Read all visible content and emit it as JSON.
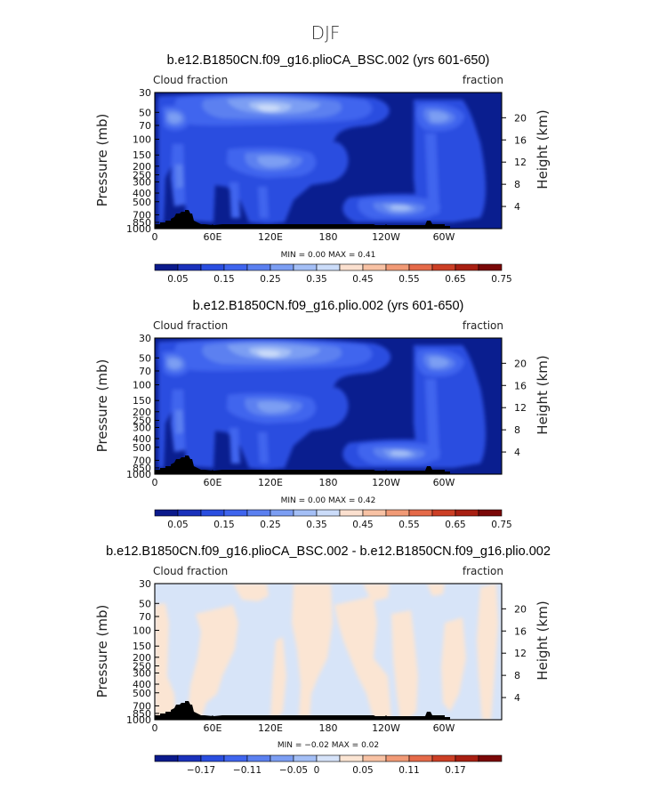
{
  "page_title": "DJF",
  "colors": {
    "cbar_abs": [
      "#0b1a8c",
      "#1a31bb",
      "#2a4ee0",
      "#3f65ee",
      "#5b80f0",
      "#7c9ef3",
      "#a4bff6",
      "#cbdcf9",
      "#fbe0cf",
      "#f8c2a4",
      "#f19a76",
      "#e56a49",
      "#cc3f25",
      "#a81f12",
      "#7a0808"
    ],
    "cbar_diff": [
      "#0b1a8c",
      "#1a31bb",
      "#2a4ee0",
      "#3f65ee",
      "#5b80f0",
      "#7c9ef3",
      "#a4bff6",
      "#d6e3f9",
      "#fbe5d3",
      "#f8c2a4",
      "#f19a76",
      "#e56a49",
      "#cc3f25",
      "#a81f12",
      "#7a0808"
    ],
    "background_abs": "#0a1e8f",
    "background_diff": "#d7e4f8",
    "positive_diff": "#fbe5d3",
    "topography": "#000000"
  },
  "panels": [
    {
      "title": "b.e12.B1850CN.f09_g16.plioCA_BSC.002 (yrs 601-650)",
      "left_label": "Cloud fraction",
      "right_label": "fraction",
      "minmax": "MIN =    0.00   MAX =    0.41",
      "colorbar_labels": [
        "0.05",
        "0.15",
        "0.25",
        "0.35",
        "0.45",
        "0.55",
        "0.65",
        "0.75"
      ]
    },
    {
      "title": "b.e12.B1850CN.f09_g16.plio.002 (yrs 601-650)",
      "left_label": "Cloud fraction",
      "right_label": "fraction",
      "minmax": "MIN =    0.00   MAX =    0.42",
      "colorbar_labels": [
        "0.05",
        "0.15",
        "0.25",
        "0.35",
        "0.45",
        "0.55",
        "0.65",
        "0.75"
      ]
    },
    {
      "title": "b.e12.B1850CN.f09_g16.plioCA_BSC.002 - b.e12.B1850CN.f09_g16.plio.002",
      "left_label": "Cloud fraction",
      "right_label": "fraction",
      "minmax": "MIN =   −0.02   MAX =    0.02",
      "colorbar_labels": [
        "−0.17",
        "−0.11",
        "−0.05",
        "0",
        "0.05",
        "0.11",
        "0.17"
      ]
    }
  ],
  "axes": {
    "ylabel_left": "Pressure (mb)",
    "ylabel_right": "Height (km)",
    "pressure_ticks": [
      "30",
      "50",
      "70",
      "100",
      "150",
      "200",
      "250",
      "300",
      "400",
      "500",
      "700",
      "850",
      "1000"
    ],
    "height_ticks": [
      "20",
      "16",
      "12",
      "8",
      "4"
    ],
    "x_ticks": [
      "0",
      "60E",
      "120E",
      "180",
      "120W",
      "60W"
    ]
  },
  "chart_data": [
    {
      "type": "heatmap",
      "title": "b.e12.B1850CN.f09_g16.plioCA_BSC.002 (yrs 601-650)",
      "variable": "Cloud fraction",
      "units": "fraction",
      "xlabel": "",
      "ylabel": "Pressure (mb)",
      "ylabel_right": "Height (km)",
      "x_ticks": [
        "0",
        "60E",
        "120E",
        "180",
        "120W",
        "60W"
      ],
      "y_ticks": [
        30,
        50,
        70,
        100,
        150,
        200,
        250,
        300,
        400,
        500,
        700,
        850,
        1000
      ],
      "ylim": [
        1000,
        30
      ],
      "min": 0.0,
      "max": 0.41,
      "contour_levels": [
        0.05,
        0.1,
        0.15,
        0.2,
        0.25,
        0.3,
        0.35,
        0.4,
        0.45,
        0.5,
        0.55,
        0.6,
        0.65,
        0.7,
        0.75
      ],
      "features": [
        {
          "lon": 125,
          "p": 180,
          "value": 0.4
        },
        {
          "lon": 20,
          "p": 200,
          "value": 0.35
        },
        {
          "lon": 295,
          "p": 190,
          "value": 0.3
        },
        {
          "lon": 125,
          "p": 480,
          "value": 0.3
        },
        {
          "lon": 280,
          "p": 820,
          "value": 0.35
        },
        {
          "lon": 30,
          "p": 550,
          "value": 0.25
        },
        {
          "lon": 220,
          "p": 550,
          "value": 0.05
        }
      ]
    },
    {
      "type": "heatmap",
      "title": "b.e12.B1850CN.f09_g16.plio.002 (yrs 601-650)",
      "variable": "Cloud fraction",
      "units": "fraction",
      "xlabel": "",
      "ylabel": "Pressure (mb)",
      "ylabel_right": "Height (km)",
      "x_ticks": [
        "0",
        "60E",
        "120E",
        "180",
        "120W",
        "60W"
      ],
      "y_ticks": [
        30,
        50,
        70,
        100,
        150,
        200,
        250,
        300,
        400,
        500,
        700,
        850,
        1000
      ],
      "ylim": [
        1000,
        30
      ],
      "min": 0.0,
      "max": 0.42,
      "contour_levels": [
        0.05,
        0.1,
        0.15,
        0.2,
        0.25,
        0.3,
        0.35,
        0.4,
        0.45,
        0.5,
        0.55,
        0.6,
        0.65,
        0.7,
        0.75
      ],
      "features": [
        {
          "lon": 125,
          "p": 180,
          "value": 0.4
        },
        {
          "lon": 20,
          "p": 200,
          "value": 0.35
        },
        {
          "lon": 295,
          "p": 190,
          "value": 0.3
        },
        {
          "lon": 125,
          "p": 480,
          "value": 0.3
        },
        {
          "lon": 280,
          "p": 820,
          "value": 0.35
        },
        {
          "lon": 30,
          "p": 550,
          "value": 0.25
        },
        {
          "lon": 220,
          "p": 550,
          "value": 0.05
        }
      ]
    },
    {
      "type": "heatmap",
      "title": "b.e12.B1850CN.f09_g16.plioCA_BSC.002 - b.e12.B1850CN.f09_g16.plio.002",
      "variable": "Cloud fraction",
      "units": "fraction",
      "xlabel": "",
      "ylabel": "Pressure (mb)",
      "ylabel_right": "Height (km)",
      "x_ticks": [
        "0",
        "60E",
        "120E",
        "180",
        "120W",
        "60W"
      ],
      "y_ticks": [
        30,
        50,
        70,
        100,
        150,
        200,
        250,
        300,
        400,
        500,
        700,
        850,
        1000
      ],
      "ylim": [
        1000,
        30
      ],
      "min": -0.02,
      "max": 0.02,
      "contour_levels": [
        -0.17,
        -0.14,
        -0.11,
        -0.08,
        -0.05,
        -0.02,
        0,
        0.02,
        0.05,
        0.08,
        0.11,
        0.14,
        0.17
      ],
      "features": [
        {
          "lon": 60,
          "p": 400,
          "value": 0.0
        },
        {
          "lon": 200,
          "p": 600,
          "value": 0.0
        },
        {
          "lon": 275,
          "p": 500,
          "value": 0.0
        }
      ]
    }
  ]
}
